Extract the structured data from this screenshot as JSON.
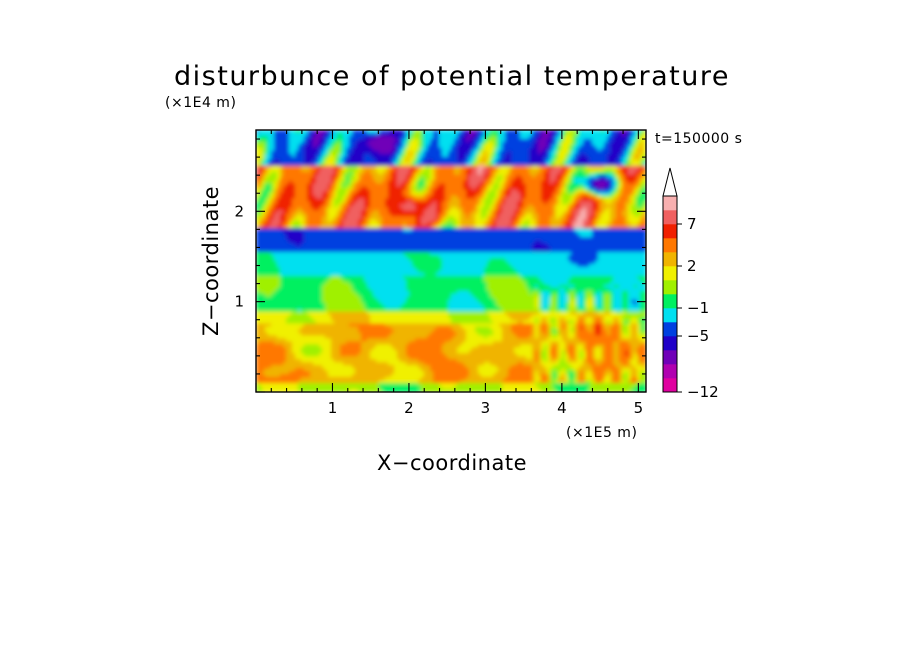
{
  "chart_data": {
    "type": "heatmap",
    "title": "disturbunce of potential temperature",
    "time_label": "t=150000 s",
    "xlabel": "X−coordinate",
    "ylabel": "Z−coordinate",
    "x_unit": "(×1E5 m)",
    "y_unit": "(×1E4 m)",
    "xlim": [
      0,
      5.1
    ],
    "ylim": [
      0,
      2.9
    ],
    "x_ticks": [
      1,
      2,
      3,
      4,
      5
    ],
    "y_ticks": [
      1,
      2
    ],
    "colorbar": {
      "levels": [
        -12,
        -11,
        -9,
        -7,
        -5,
        -3,
        -1,
        0,
        1,
        2,
        3,
        5,
        7,
        9,
        11
      ],
      "tick_labels": [
        "−12",
        "−5",
        "−1",
        "2",
        "7"
      ],
      "tick_values": [
        -12,
        -5,
        -1,
        2,
        7
      ],
      "colors": [
        "#e000a0",
        "#b000b0",
        "#7000b8",
        "#2000c8",
        "#0040e0",
        "#00e0f0",
        "#00f060",
        "#a0f000",
        "#f0f000",
        "#f0b400",
        "#ff7800",
        "#f02000",
        "#f06060",
        "#f8b0b0"
      ],
      "extend": "max"
    },
    "bands": [
      {
        "z_range": [
          0.0,
          0.1
        ],
        "approx_value": 0.5
      },
      {
        "z_range": [
          0.1,
          0.75
        ],
        "approx_value": 2.5
      },
      {
        "z_range": [
          0.75,
          0.9
        ],
        "approx_value": 1.5
      },
      {
        "z_range": [
          0.9,
          1.3
        ],
        "approx_value": -0.5
      },
      {
        "z_range": [
          1.3,
          1.55
        ],
        "approx_value": -1.5
      },
      {
        "z_range": [
          1.55,
          1.8
        ],
        "approx_value": -4
      },
      {
        "z_range": [
          1.8,
          2.5
        ],
        "approx_value": 4
      },
      {
        "z_range": [
          2.5,
          2.9
        ],
        "approx_value": -3
      }
    ],
    "features": [
      {
        "x": 2.0,
        "z": 2.05,
        "value": 8
      },
      {
        "x": 1.6,
        "z": 2.75,
        "value": -9
      },
      {
        "x": 4.5,
        "z": 2.3,
        "value": -9
      },
      {
        "x": 2.35,
        "z": 1.7,
        "value": -5
      },
      {
        "x": 4.3,
        "z": 1.5,
        "value": -5
      }
    ]
  }
}
